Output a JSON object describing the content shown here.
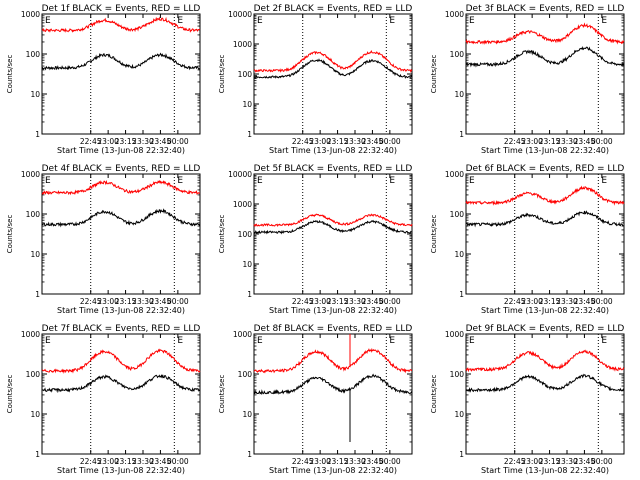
{
  "chart_data": [
    {
      "type": "line",
      "title": "Det 1f BLACK = Events, RED = LLD",
      "xlabel": "Start Time (13-Jun-08 22:32:40)",
      "ylabel": "Counts/sec",
      "yscale": "log",
      "ylim": [
        1,
        1000
      ],
      "xlim": [
        0,
        2400
      ],
      "x_ticks": [
        "22:45",
        "23:00",
        "23:15",
        "23:30",
        "23:45",
        "00:00"
      ],
      "y_ticks": [
        "1",
        "10",
        "100",
        "1000"
      ],
      "marker_labels": [
        "E",
        "E"
      ],
      "vlines": [
        740,
        2010
      ],
      "series": [
        {
          "color": "#000000",
          "base": 45,
          "peaks": [
            [
              950,
              95
            ],
            [
              1800,
              95
            ]
          ]
        },
        {
          "color": "#ff0000",
          "base": 390,
          "peaks": [
            [
              950,
              700
            ],
            [
              1800,
              750
            ]
          ]
        }
      ]
    },
    {
      "type": "line",
      "title": "Det 2f BLACK = Events, RED = LLD",
      "xlabel": "Start Time (13-Jun-08 22:32:40)",
      "ylabel": "Counts/sec",
      "yscale": "log",
      "ylim": [
        1,
        10000
      ],
      "xlim": [
        0,
        2400
      ],
      "x_ticks": [
        "22:45",
        "23:00",
        "23:15",
        "23:30",
        "23:45",
        "00:00"
      ],
      "y_ticks": [
        "1",
        "10",
        "100",
        "1000",
        "10000"
      ],
      "marker_labels": [
        "E",
        "E"
      ],
      "vlines": [
        740,
        2010
      ],
      "series": [
        {
          "color": "#000000",
          "base": 80,
          "peaks": [
            [
              950,
              290
            ],
            [
              1800,
              280
            ]
          ]
        },
        {
          "color": "#ff0000",
          "base": 130,
          "peaks": [
            [
              950,
              520
            ],
            [
              1800,
              540
            ]
          ]
        }
      ]
    },
    {
      "type": "line",
      "title": "Det 3f BLACK = Events, RED = LLD",
      "xlabel": "Start Time (13-Jun-08 22:32:40)",
      "ylabel": "Counts/sec",
      "yscale": "log",
      "ylim": [
        1,
        1000
      ],
      "xlim": [
        0,
        2400
      ],
      "x_ticks": [
        "22:45",
        "23:00",
        "23:15",
        "23:30",
        "23:45",
        "00:00"
      ],
      "y_ticks": [
        "1",
        "10",
        "100",
        "1000"
      ],
      "marker_labels": [
        "E",
        "E"
      ],
      "vlines": [
        740,
        2010
      ],
      "series": [
        {
          "color": "#000000",
          "base": 55,
          "peaks": [
            [
              950,
              115
            ],
            [
              1800,
              140
            ]
          ]
        },
        {
          "color": "#ff0000",
          "base": 200,
          "peaks": [
            [
              950,
              360
            ],
            [
              1800,
              520
            ]
          ]
        }
      ]
    },
    {
      "type": "line",
      "title": "Det 4f BLACK = Events, RED = LLD",
      "xlabel": "Start Time (13-Jun-08 22:32:40)",
      "ylabel": "Counts/sec",
      "yscale": "log",
      "ylim": [
        1,
        1000
      ],
      "xlim": [
        0,
        2400
      ],
      "x_ticks": [
        "22:45",
        "23:00",
        "23:15",
        "23:30",
        "23:45",
        "00:00"
      ],
      "y_ticks": [
        "1",
        "10",
        "100",
        "1000"
      ],
      "marker_labels": [
        "E",
        "E"
      ],
      "vlines": [
        740,
        2010
      ],
      "series": [
        {
          "color": "#000000",
          "base": 55,
          "peaks": [
            [
              950,
              115
            ],
            [
              1800,
              120
            ]
          ]
        },
        {
          "color": "#ff0000",
          "base": 340,
          "peaks": [
            [
              950,
              620
            ],
            [
              1800,
              620
            ]
          ]
        }
      ]
    },
    {
      "type": "line",
      "title": "Det 5f BLACK = Events, RED = LLD",
      "xlabel": "Start Time (13-Jun-08 22:32:40)",
      "ylabel": "Counts/sec",
      "yscale": "log",
      "ylim": [
        1,
        10000
      ],
      "xlim": [
        0,
        2400
      ],
      "x_ticks": [
        "22:45",
        "23:00",
        "23:15",
        "23:30",
        "23:45",
        "00:00"
      ],
      "y_ticks": [
        "1",
        "10",
        "100",
        "1000",
        "10000"
      ],
      "marker_labels": [
        "E",
        "E"
      ],
      "vlines": [
        740,
        2010
      ],
      "series": [
        {
          "color": "#000000",
          "base": 115,
          "peaks": [
            [
              950,
              260
            ],
            [
              1800,
              260
            ]
          ]
        },
        {
          "color": "#ff0000",
          "base": 200,
          "peaks": [
            [
              950,
              430
            ],
            [
              1800,
              430
            ]
          ]
        }
      ]
    },
    {
      "type": "line",
      "title": "Det 6f BLACK = Events, RED = LLD",
      "xlabel": "Start Time (13-Jun-08 22:32:40)",
      "ylabel": "Counts/sec",
      "yscale": "log",
      "ylim": [
        1,
        1000
      ],
      "xlim": [
        0,
        2400
      ],
      "x_ticks": [
        "22:45",
        "23:00",
        "23:15",
        "23:30",
        "23:45",
        "00:00"
      ],
      "y_ticks": [
        "1",
        "10",
        "100",
        "1000"
      ],
      "marker_labels": [
        "E",
        "E"
      ],
      "vlines": [
        740,
        2010
      ],
      "series": [
        {
          "color": "#000000",
          "base": 55,
          "peaks": [
            [
              950,
              95
            ],
            [
              1800,
              110
            ]
          ]
        },
        {
          "color": "#ff0000",
          "base": 190,
          "peaks": [
            [
              950,
              330
            ],
            [
              1800,
              450
            ]
          ]
        }
      ]
    },
    {
      "type": "line",
      "title": "Det 7f BLACK = Events, RED = LLD",
      "xlabel": "Start Time (13-Jun-08 22:32:40)",
      "ylabel": "Counts/sec",
      "yscale": "log",
      "ylim": [
        1,
        1000
      ],
      "xlim": [
        0,
        2400
      ],
      "x_ticks": [
        "22:45",
        "23:00",
        "23:15",
        "23:30",
        "23:45",
        "00:00"
      ],
      "y_ticks": [
        "1",
        "10",
        "100",
        "1000"
      ],
      "marker_labels": [
        "E",
        "E"
      ],
      "vlines": [
        740,
        2010
      ],
      "series": [
        {
          "color": "#000000",
          "base": 40,
          "peaks": [
            [
              950,
              85
            ],
            [
              1800,
              90
            ]
          ]
        },
        {
          "color": "#ff0000",
          "base": 120,
          "peaks": [
            [
              950,
              360
            ],
            [
              1800,
              380
            ]
          ]
        }
      ]
    },
    {
      "type": "line",
      "title": "Det 8f BLACK = Events, RED = LLD",
      "xlabel": "Start Time (13-Jun-08 22:32:40)",
      "ylabel": "Counts/sec",
      "yscale": "log",
      "ylim": [
        1,
        1000
      ],
      "xlim": [
        0,
        2400
      ],
      "x_ticks": [
        "22:45",
        "23:00",
        "23:15",
        "23:30",
        "23:45",
        "00:00"
      ],
      "y_ticks": [
        "1",
        "10",
        "100",
        "1000"
      ],
      "marker_labels": [
        "E",
        "E"
      ],
      "vlines": [
        740,
        2010
      ],
      "series": [
        {
          "color": "#000000",
          "base": 35,
          "peaks": [
            [
              950,
              80
            ],
            [
              1800,
              90
            ]
          ],
          "spike": [
            1460,
            2
          ]
        },
        {
          "color": "#ff0000",
          "base": 120,
          "peaks": [
            [
              950,
              360
            ],
            [
              1800,
              400
            ]
          ],
          "spike": [
            1460,
            1000
          ]
        }
      ]
    },
    {
      "type": "line",
      "title": "Det 9f BLACK = Events, RED = LLD",
      "xlabel": "Start Time (13-Jun-08 22:32:40)",
      "ylabel": "Counts/sec",
      "yscale": "log",
      "ylim": [
        1,
        1000
      ],
      "xlim": [
        0,
        2400
      ],
      "x_ticks": [
        "22:45",
        "23:00",
        "23:15",
        "23:30",
        "23:45",
        "00:00"
      ],
      "y_ticks": [
        "1",
        "10",
        "100",
        "1000"
      ],
      "marker_labels": [
        "E",
        "E"
      ],
      "vlines": [
        740,
        2010
      ],
      "series": [
        {
          "color": "#000000",
          "base": 40,
          "peaks": [
            [
              950,
              85
            ],
            [
              1800,
              90
            ]
          ]
        },
        {
          "color": "#ff0000",
          "base": 130,
          "peaks": [
            [
              950,
              340
            ],
            [
              1800,
              370
            ]
          ]
        }
      ]
    }
  ]
}
